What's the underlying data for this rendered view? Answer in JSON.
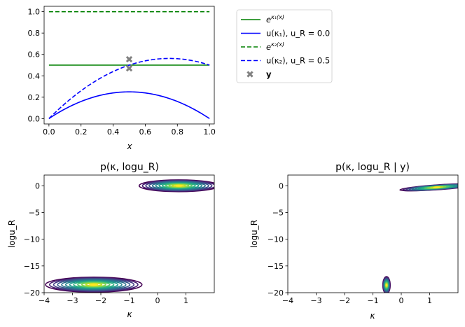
{
  "chart_data": [
    {
      "id": "top",
      "type": "line",
      "xlabel": "x",
      "ylabel": "",
      "xlim": [
        -0.03,
        1.03
      ],
      "ylim": [
        -0.05,
        1.05
      ],
      "xticks": [
        0.0,
        0.2,
        0.4,
        0.6,
        0.8,
        1.0
      ],
      "yticks": [
        0.0,
        0.2,
        0.4,
        0.6,
        0.8,
        1.0
      ],
      "xtick_labels": [
        "0.0",
        "0.2",
        "0.4",
        "0.6",
        "0.8",
        "1.0"
      ],
      "ytick_labels": [
        "0.0",
        "0.2",
        "0.4",
        "0.6",
        "0.8",
        "1.0"
      ],
      "series": [
        {
          "name": "e^{κ1(x)}",
          "style": "solid",
          "color": "#008000",
          "kind": "constant",
          "value": 0.5
        },
        {
          "name": "u(κ1), u_R = 0.0",
          "style": "solid",
          "color": "#0000ff",
          "kind": "quadratic",
          "uR": 0.0
        },
        {
          "name": "e^{κ2(x)}",
          "style": "dashed",
          "color": "#008000",
          "kind": "constant",
          "value": 1.0
        },
        {
          "name": "u(κ2), u_R = 0.5",
          "style": "dashed",
          "color": "#0000ff",
          "kind": "quadratic",
          "uR": 0.5
        }
      ],
      "observations": {
        "name": "y",
        "marker": "x",
        "color": "#808080",
        "x": [
          0.5,
          0.5
        ],
        "y": [
          0.555,
          0.47
        ]
      },
      "legend": {
        "placement": "outside-right",
        "entries": [
          {
            "base": "e",
            "sup": "κ₁(x)",
            "color": "#008000",
            "style": "solid"
          },
          {
            "text": "u(κ₁), u_R = 0.0",
            "color": "#0000ff",
            "style": "solid"
          },
          {
            "base": "e",
            "sup": "κ₂(x)",
            "color": "#008000",
            "style": "dashed"
          },
          {
            "text": "u(κ₂), u_R = 0.5",
            "color": "#0000ff",
            "style": "dashed"
          },
          {
            "text": "y",
            "color": "#808080",
            "style": "marker"
          }
        ]
      }
    },
    {
      "id": "prior",
      "type": "contour",
      "title": "p(κ, logu_R)",
      "xlabel": "κ",
      "ylabel": "logu_R",
      "xlim": [
        -4,
        2
      ],
      "ylim": [
        -20,
        2
      ],
      "xticks": [
        -4,
        -3,
        -2,
        -1,
        0,
        1
      ],
      "yticks": [
        0,
        -5,
        -10,
        -15,
        -20
      ],
      "xtick_labels": [
        "−4",
        "−3",
        "−2",
        "−1",
        "0",
        "1"
      ],
      "ytick_labels": [
        "0",
        "−5",
        "−10",
        "−15",
        "−20"
      ],
      "modes": [
        {
          "center": [
            0.75,
            0.0
          ],
          "spread": [
            1.4,
            1.1
          ]
        },
        {
          "center": [
            -2.25,
            -18.5
          ],
          "spread": [
            1.7,
            1.4
          ]
        }
      ]
    },
    {
      "id": "posterior",
      "type": "contour",
      "title": "p(κ, logu_R | y)",
      "xlabel": "κ",
      "ylabel": "logu_R",
      "xlim": [
        -4,
        2
      ],
      "ylim": [
        -20,
        2
      ],
      "xticks": [
        -4,
        -3,
        -2,
        -1,
        0,
        1
      ],
      "yticks": [
        0,
        -5,
        -10,
        -15,
        -20
      ],
      "xtick_labels": [
        "−4",
        "−3",
        "−2",
        "−1",
        "0",
        "1"
      ],
      "ytick_labels": [
        "0",
        "−5",
        "−10",
        "−15",
        "−20"
      ],
      "modes": [
        {
          "center": [
            1.25,
            -0.3
          ],
          "spread": [
            1.3,
            0.45
          ],
          "tilt": -0.1
        },
        {
          "center": [
            -0.52,
            -18.6
          ],
          "spread": [
            0.13,
            1.6
          ]
        }
      ]
    }
  ]
}
